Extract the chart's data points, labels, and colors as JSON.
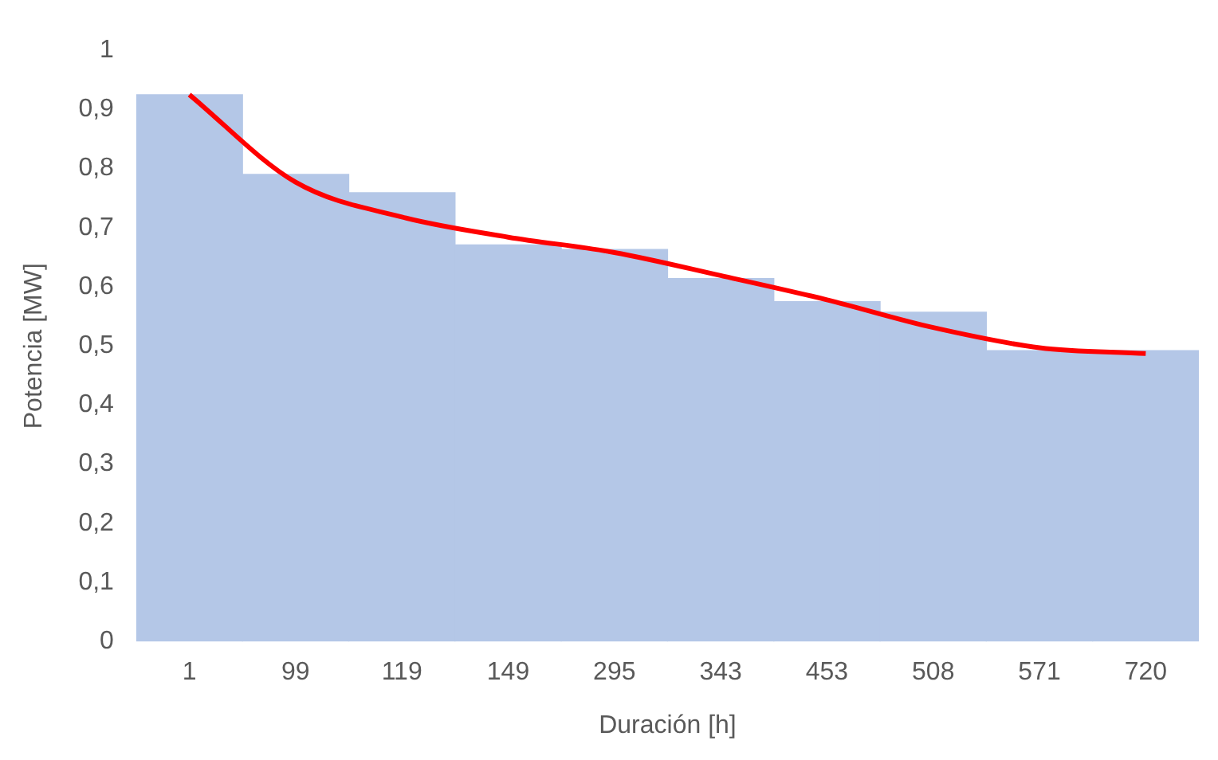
{
  "chart_data": {
    "type": "bar",
    "xlabel": "Duración [h]",
    "ylabel": "Potencia [MW]",
    "categories": [
      "1",
      "99",
      "119",
      "149",
      "295",
      "343",
      "453",
      "508",
      "571",
      "720"
    ],
    "series": [
      {
        "color": "#b4c7e7",
        "values": [
          0.925,
          0.79,
          0.759,
          0.671,
          0.663,
          0.614,
          0.575,
          0.557,
          0.492,
          0.492
        ]
      },
      {
        "type": "line",
        "color": "#ff0000",
        "values": [
          0.925,
          0.777,
          0.718,
          0.684,
          0.658,
          0.619,
          0.578,
          0.531,
          0.497,
          0.487
        ]
      }
    ],
    "ylim": [
      0,
      1
    ],
    "yticks": [
      0,
      {
        "value": 0.1,
        "label": "0,1"
      },
      {
        "value": 0.2,
        "label": "0,2"
      },
      {
        "value": 0.3,
        "label": "0,3"
      },
      {
        "value": 0.4,
        "label": "0,4"
      },
      {
        "value": 0.5,
        "label": "0,5"
      },
      {
        "value": 0.6,
        "label": "0,6"
      },
      {
        "value": 0.7,
        "label": "0,7"
      },
      {
        "value": 0.8,
        "label": "0,8"
      },
      {
        "value": 0.9,
        "label": "0,9"
      },
      1
    ],
    "grid": false,
    "legend": false,
    "marker": "none"
  }
}
